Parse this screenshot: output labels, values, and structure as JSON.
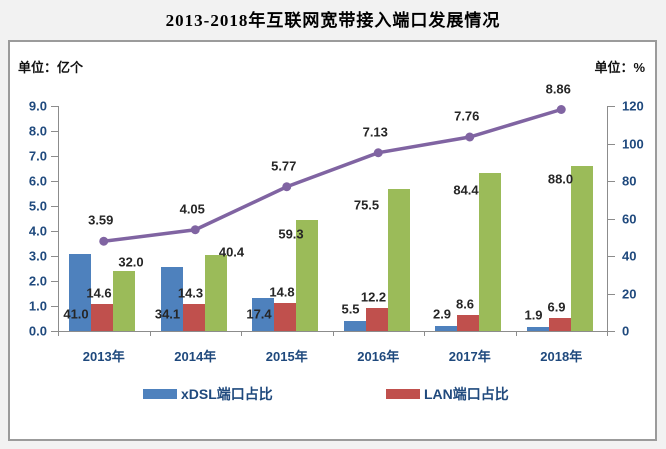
{
  "title": "2013-2018年互联网宽带接入端口发展情况",
  "units": {
    "left": "单位：亿个",
    "right": "单位：%"
  },
  "chart_data": {
    "type": "combo-bar-line",
    "title": "2013-2018年互联网宽带接入端口发展情况",
    "categories": [
      "2013年",
      "2014年",
      "2015年",
      "2016年",
      "2017年",
      "2018年"
    ],
    "left_axis": {
      "unit": "单位：亿个",
      "min": 0,
      "max": 9,
      "step": 1,
      "tick_labels": [
        "0.0",
        "1.0",
        "2.0",
        "3.0",
        "4.0",
        "5.0",
        "6.0",
        "7.0",
        "8.0",
        "9.0"
      ]
    },
    "right_axis": {
      "unit": "单位：%",
      "min": 0,
      "max": 120,
      "step": 20,
      "tick_labels": [
        "0",
        "20",
        "40",
        "60",
        "80",
        "100",
        "120"
      ]
    },
    "grid": false,
    "legend_position": "bottom",
    "series": [
      {
        "id": "xdsl",
        "name": "xDSL端口占比",
        "type": "bar",
        "axis": "right",
        "color": "#4E81BD",
        "values": [
          41.0,
          34.1,
          17.4,
          5.5,
          2.9,
          1.9
        ],
        "labels": [
          "41.0",
          "34.1",
          "17.4",
          "5.5",
          "2.9",
          "1.9"
        ]
      },
      {
        "id": "lan",
        "name": "LAN端口占比",
        "type": "bar",
        "axis": "right",
        "color": "#C0504D",
        "values": [
          14.6,
          14.3,
          14.8,
          12.2,
          8.6,
          6.9
        ],
        "labels": [
          "14.6",
          "14.3",
          "14.8",
          "12.2",
          "8.6",
          "6.9"
        ]
      },
      {
        "id": "green-bar",
        "name": "",
        "type": "bar",
        "axis": "right",
        "color": "#9BBB59",
        "values": [
          32.0,
          40.4,
          59.3,
          75.5,
          84.4,
          88.0
        ],
        "labels": [
          "32.0",
          "40.4",
          "59.3",
          "75.5",
          "84.4",
          "88.0"
        ]
      },
      {
        "id": "trend-line",
        "name": "",
        "type": "line",
        "axis": "left",
        "color": "#8064A2",
        "values": [
          3.59,
          4.05,
          5.77,
          7.13,
          7.76,
          8.86
        ],
        "labels": [
          "3.59",
          "4.05",
          "5.77",
          "7.13",
          "7.76",
          "8.86"
        ]
      }
    ],
    "legend": [
      {
        "label": "xDSL端口占比",
        "color": "#4E81BD"
      },
      {
        "label": "LAN端口占比",
        "color": "#C0504D"
      }
    ]
  },
  "colors": {
    "axis_text": "#1F497D",
    "data_label": "#262626",
    "axis_line": "#8C8C8C",
    "frame_border": "#9B9B9B",
    "background": "#F2F2F2",
    "plot_background": "#FFFFFF"
  }
}
